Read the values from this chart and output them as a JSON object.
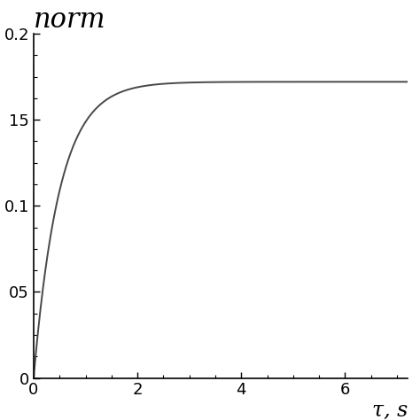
{
  "title": "norm",
  "xlabel": "τ, s",
  "xlim": [
    0,
    7.2
  ],
  "ylim": [
    0,
    0.2
  ],
  "xticks": [
    0,
    2,
    4,
    6
  ],
  "yticks": [
    0,
    0.05,
    0.1,
    0.15,
    0.2
  ],
  "ytick_labels": [
    "0",
    "05",
    "0.1",
    "15",
    "0.2"
  ],
  "asymptote": 0.172,
  "time_constant": 0.5,
  "line_color": "#484848",
  "line_width": 1.4,
  "background_color": "#ffffff",
  "title_fontsize": 22,
  "label_fontsize": 17,
  "tick_fontsize": 13,
  "minor_xticks": 4,
  "minor_yticks": 4
}
